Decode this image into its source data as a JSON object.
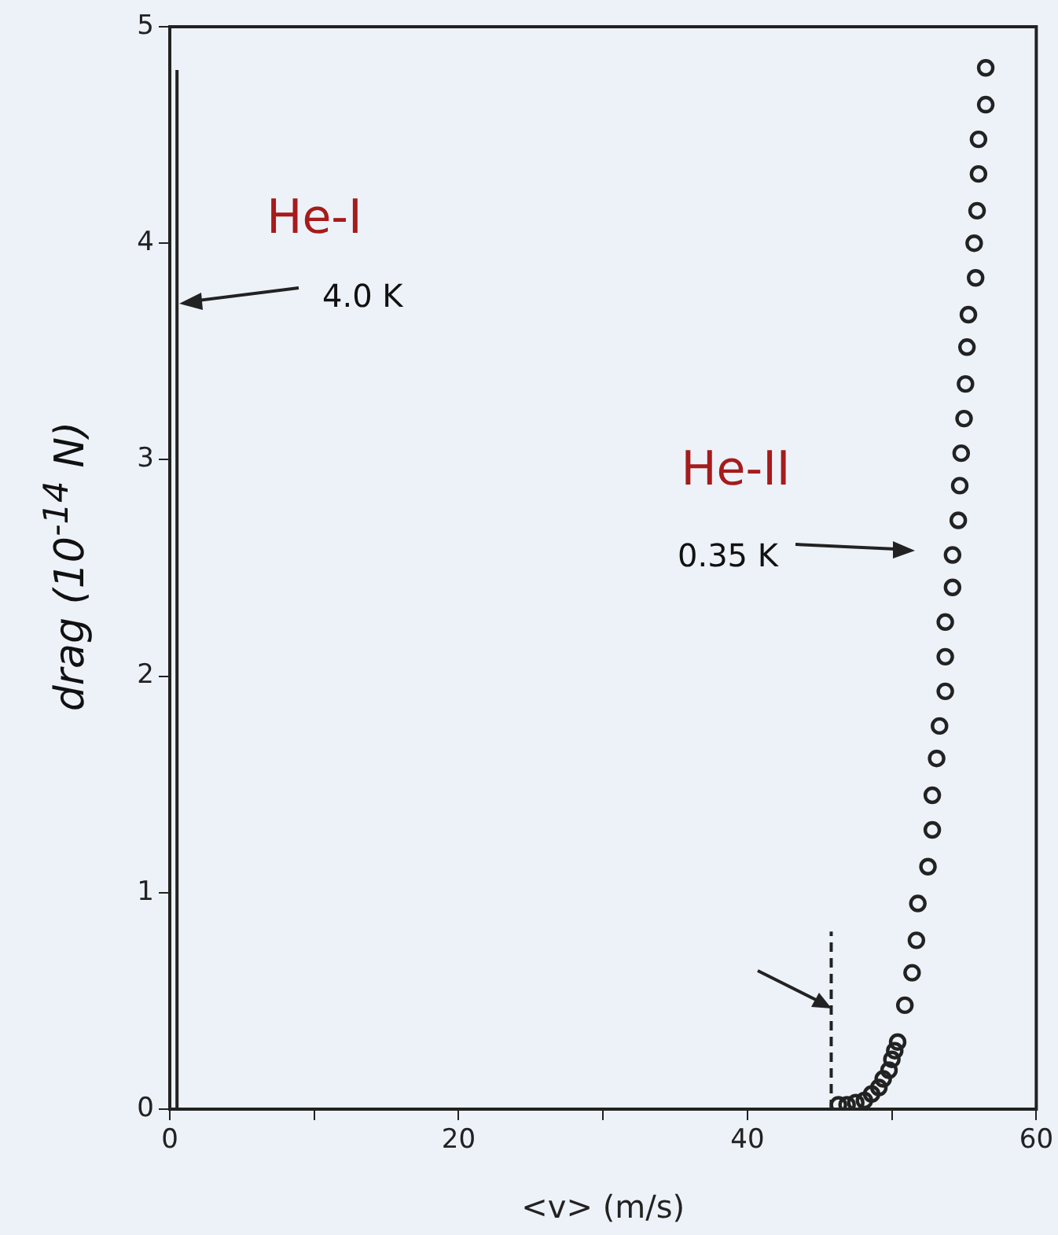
{
  "chart_data": {
    "type": "scatter",
    "xlabel": "<v> (m/s)",
    "ylabel": "drag (10$^{-14}$ N)",
    "xlim": [
      0,
      60
    ],
    "ylim": [
      0,
      5
    ],
    "xticks": [
      0,
      {
        "value": 10,
        "label": null
      },
      20,
      {
        "value": 30,
        "label": null
      },
      40,
      {
        "value": 50,
        "label": null
      },
      60
    ],
    "yticks": [
      0,
      1,
      2,
      3,
      4,
      5
    ],
    "grid": false,
    "legend": false,
    "marker": "circle",
    "series": [
      {
        "color": "#222222",
        "x": [
          56.5,
          56.5,
          56.0,
          56.0,
          55.9,
          55.7,
          55.8,
          55.3,
          55.2,
          55.1,
          55.0,
          54.8,
          54.7,
          54.6,
          54.2,
          54.2,
          53.7,
          53.7,
          53.7,
          53.3,
          53.1,
          52.8,
          52.8,
          52.5,
          51.8,
          51.7,
          51.4,
          50.9,
          50.4,
          50.2,
          50.0,
          49.8,
          49.4,
          49.1,
          48.6,
          48.1,
          47.5,
          46.9,
          46.3
        ],
        "values": [
          4.81,
          4.64,
          4.48,
          4.32,
          4.15,
          4.0,
          3.84,
          3.67,
          3.52,
          3.35,
          3.19,
          3.03,
          2.88,
          2.72,
          2.56,
          2.41,
          2.25,
          2.09,
          1.93,
          1.77,
          1.62,
          1.45,
          1.29,
          1.12,
          0.95,
          0.78,
          0.63,
          0.48,
          0.31,
          0.27,
          0.23,
          0.18,
          0.14,
          0.1,
          0.07,
          0.04,
          0.03,
          0.02,
          0.02
        ]
      },
      {
        "type": "line",
        "color": "#222222",
        "marker": "none",
        "line_style": "solid",
        "x": [
          0.5,
          0.5
        ],
        "values": [
          0,
          4.8
        ]
      },
      {
        "type": "line",
        "color": "#222222",
        "marker": "none",
        "line_style": "dashed",
        "x": [
          45.8,
          45.8
        ],
        "values": [
          0,
          0.82
        ]
      }
    ],
    "annotations": [
      "He-I",
      "He-II",
      "4.0 K",
      "0.35 K"
    ]
  }
}
